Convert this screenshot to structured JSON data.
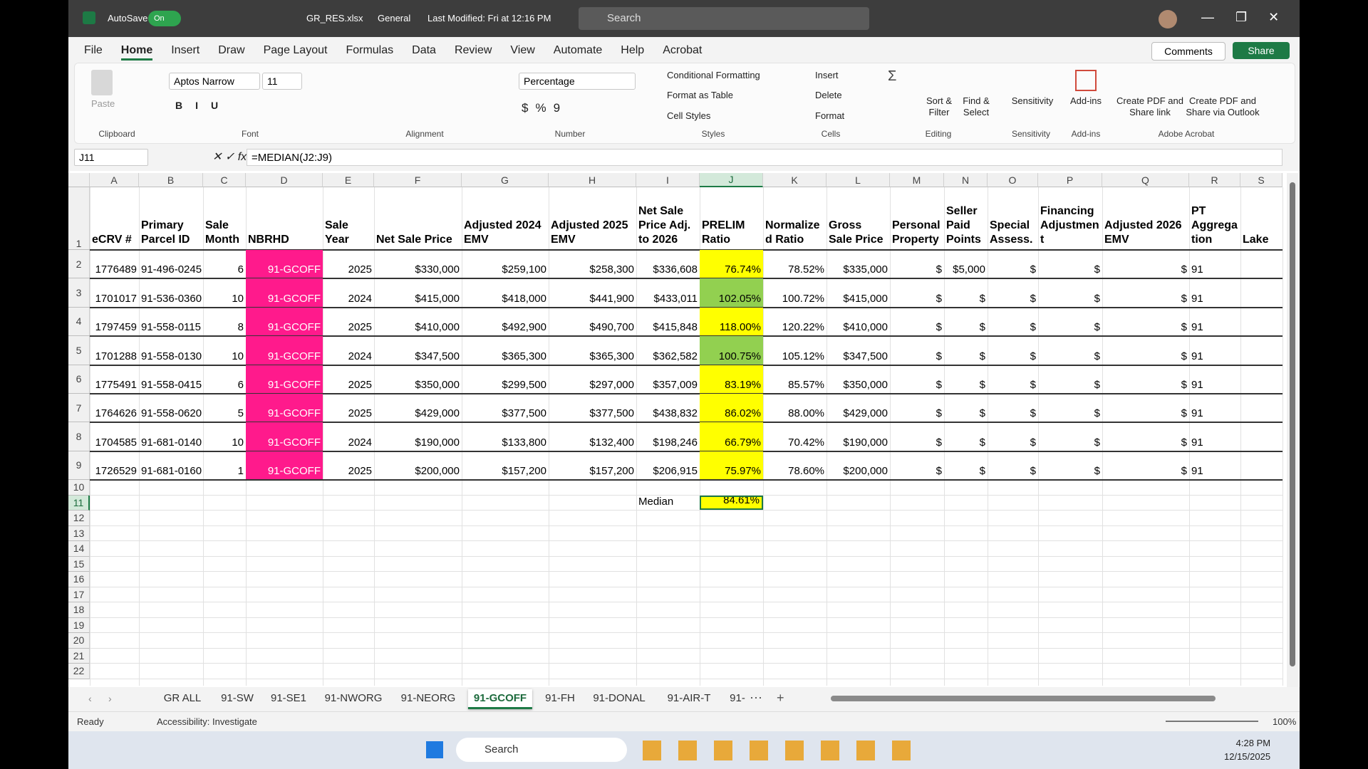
{
  "title_bar": {
    "autosave": "AutoSave",
    "toggle": "On",
    "file": "GR_RES.xlsx",
    "label": "General",
    "modified": "Last Modified: Fri at 12:16 PM",
    "search": "Search"
  },
  "menu": {
    "tabs": [
      "File",
      "Home",
      "Insert",
      "Draw",
      "Page Layout",
      "Formulas",
      "Data",
      "Review",
      "View",
      "Automate",
      "Help",
      "Acrobat"
    ],
    "active": 1,
    "comments": "Comments",
    "share": "Share"
  },
  "ribbon": {
    "font": "Aptos Narrow",
    "size": 11,
    "number_format": "Percentage",
    "paste": "Paste",
    "conditional": "Conditional Formatting",
    "format_table": "Format as Table",
    "cell_styles": "Cell Styles",
    "insert": "Insert",
    "delete": "Delete",
    "format": "Format",
    "sort": "Sort & Filter",
    "find": "Find & Select",
    "sensitivity": "Sensitivity",
    "addins": "Add-ins",
    "pdf_link": "Create PDF and Share link",
    "pdf_outlook": "Create PDF and Share via Outlook",
    "groups": [
      "Clipboard",
      "Font",
      "Alignment",
      "Number",
      "Styles",
      "Cells",
      "Editing",
      "Sensitivity",
      "Add-ins",
      "Adobe Acrobat"
    ]
  },
  "formula_bar": {
    "name_box": "J11",
    "formula": "=MEDIAN(J2:J9)"
  },
  "sheet": {
    "columns": [
      "A",
      "B",
      "C",
      "D",
      "E",
      "F",
      "G",
      "H",
      "I",
      "J",
      "K",
      "L",
      "M",
      "N",
      "O",
      "P",
      "Q",
      "R",
      "S"
    ],
    "row_numbers": [
      1,
      2,
      3,
      4,
      5,
      6,
      7,
      8,
      9,
      10,
      11,
      12,
      13,
      14,
      15,
      16,
      17,
      18,
      19,
      20,
      21,
      22
    ],
    "header": [
      "eCRV #",
      "Primary Parcel ID",
      "Sale Month",
      "NBRHD",
      "Sale Year",
      "Net Sale Price",
      "Adjusted 2024 EMV",
      "Adjusted 2025 EMV",
      "Net Sale Price Adj. to 2026",
      "PRELIM Ratio",
      "Normalized Ratio",
      "Gross Sale Price",
      "Personal Property",
      "Seller Paid Points",
      "Special Assess.",
      "Financing Adjustment",
      "Adjusted 2026 EMV",
      "PT Aggregation",
      "Lake"
    ],
    "rows": [
      [
        "1776489",
        "91-496-0245",
        "6",
        "91-GCOFF",
        "2025",
        "$330,000",
        "$259,100",
        "$258,300",
        "$336,608",
        "76.74%",
        "78.52%",
        "$335,000",
        "$",
        "$5,000",
        "$",
        "$",
        "$",
        "91"
      ],
      [
        "1701017",
        "91-536-0360",
        "10",
        "91-GCOFF",
        "2024",
        "$415,000",
        "$418,000",
        "$441,900",
        "$433,011",
        "102.05%",
        "100.72%",
        "$415,000",
        "$",
        "$",
        "$",
        "$",
        "$",
        "91"
      ],
      [
        "1797459",
        "91-558-0115",
        "8",
        "91-GCOFF",
        "2025",
        "$410,000",
        "$492,900",
        "$490,700",
        "$415,848",
        "118.00%",
        "120.22%",
        "$410,000",
        "$",
        "$",
        "$",
        "$",
        "$",
        "91"
      ],
      [
        "1701288",
        "91-558-0130",
        "10",
        "91-GCOFF",
        "2024",
        "$347,500",
        "$365,300",
        "$365,300",
        "$362,582",
        "100.75%",
        "105.12%",
        "$347,500",
        "$",
        "$",
        "$",
        "$",
        "$",
        "91"
      ],
      [
        "1775491",
        "91-558-0415",
        "6",
        "91-GCOFF",
        "2025",
        "$350,000",
        "$299,500",
        "$297,000",
        "$357,009",
        "83.19%",
        "85.57%",
        "$350,000",
        "$",
        "$",
        "$",
        "$",
        "$",
        "91"
      ],
      [
        "1764626",
        "91-558-0620",
        "5",
        "91-GCOFF",
        "2025",
        "$429,000",
        "$377,500",
        "$377,500",
        "$438,832",
        "86.02%",
        "88.00%",
        "$429,000",
        "$",
        "$",
        "$",
        "$",
        "$",
        "91"
      ],
      [
        "1704585",
        "91-681-0140",
        "10",
        "91-GCOFF",
        "2024",
        "$190,000",
        "$133,800",
        "$132,400",
        "$198,246",
        "66.79%",
        "70.42%",
        "$190,000",
        "$",
        "$",
        "$",
        "$",
        "$",
        "91"
      ],
      [
        "1726529",
        "91-681-0160",
        "1",
        "91-GCOFF",
        "2025",
        "$200,000",
        "$157,200",
        "$157,200",
        "$206,915",
        "75.97%",
        "78.60%",
        "$200,000",
        "$",
        "$",
        "$",
        "$",
        "$",
        "91"
      ]
    ],
    "highlight": [
      "#ffff00",
      "#92d050",
      "#ffff00",
      "#92d050",
      "#ffff00",
      "#ffff00",
      "#ffff00",
      "#ffff00"
    ],
    "nbrhd_color": "#ff1a8c",
    "median_label": "Median",
    "median": "84.61%"
  },
  "tabs": {
    "sheets": [
      "GR ALL",
      "91-SW",
      "91-SE1",
      "91-NWORG",
      "91-NEORG",
      "91-GCOFF",
      "91-FH",
      "91-DONAL",
      "91-AIR-T",
      "91-"
    ],
    "active": 5
  },
  "status": {
    "ready": "Ready",
    "accessibility": "Accessibility: Investigate",
    "zoom": "100%"
  },
  "taskbar": {
    "search": "Search",
    "time": "4:28 PM",
    "date": "12/15/2025"
  }
}
